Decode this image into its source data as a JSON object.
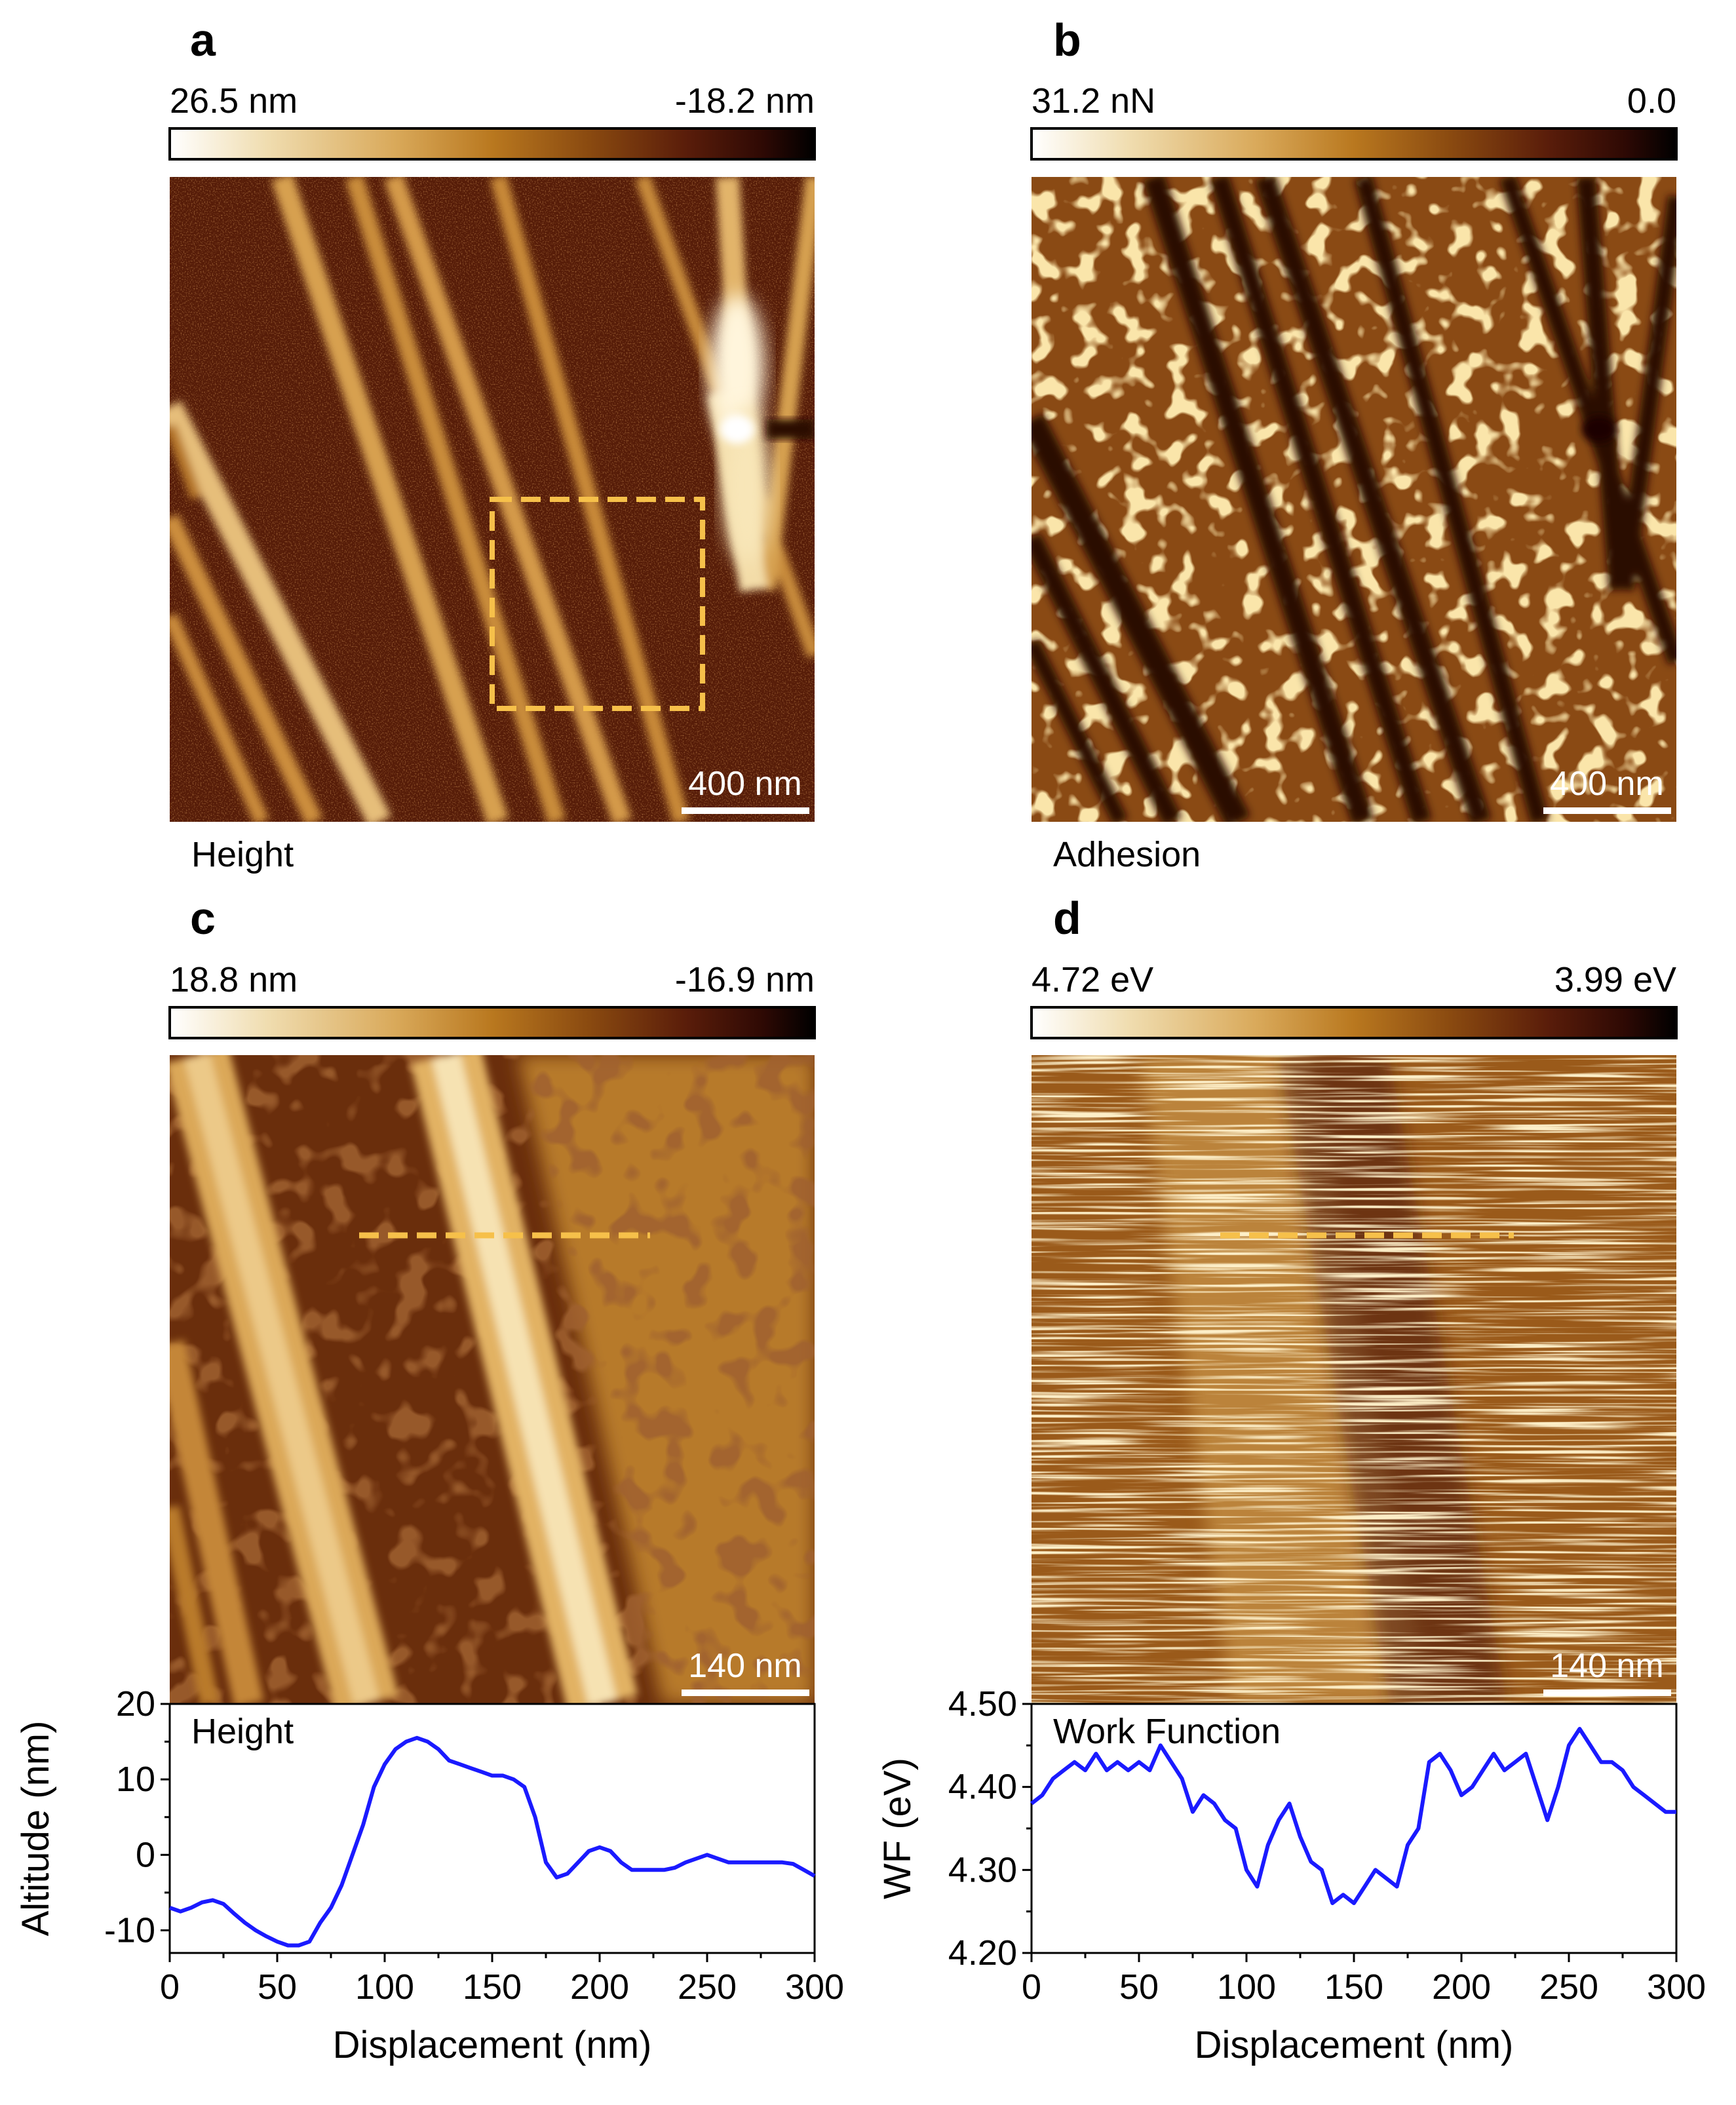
{
  "colors": {
    "colormap": [
      "#ffffff",
      "#f0ddb0",
      "#d9a95a",
      "#b9781f",
      "#8a4a10",
      "#5a1d0a",
      "#2e0904",
      "#000000"
    ],
    "dashed_box": "#f6c04a",
    "profile_line": "#1a1aff",
    "axis": "#000000"
  },
  "panels": {
    "a": {
      "letter": "a",
      "colorbar_left": "26.5 nm",
      "colorbar_right": "-18.2 nm",
      "scalebar_label": "400 nm",
      "channel_label": "Height"
    },
    "b": {
      "letter": "b",
      "colorbar_left": "31.2 nN",
      "colorbar_right": "0.0",
      "scalebar_label": "400 nm",
      "channel_label": "Adhesion"
    },
    "c": {
      "letter": "c",
      "colorbar_left": "18.8 nm",
      "colorbar_right": "-16.9 nm",
      "scalebar_label": "140 nm"
    },
    "d": {
      "letter": "d",
      "colorbar_left": "4.72 eV",
      "colorbar_right": "3.99 eV",
      "scalebar_label": "140 nm"
    }
  },
  "chart_data": [
    {
      "type": "line",
      "panel": "c",
      "title": "Height",
      "xlabel": "Displacement (nm)",
      "ylabel": "Altitude (nm)",
      "xlim": [
        0,
        300
      ],
      "ylim": [
        -13,
        20
      ],
      "xticks": [
        "0",
        "50",
        "100",
        "150",
        "200",
        "250",
        "300"
      ],
      "yticks": [
        "-10",
        "0",
        "10",
        "20"
      ],
      "xtick_values": [
        0,
        50,
        100,
        150,
        200,
        250,
        300
      ],
      "ytick_values": [
        -10,
        0,
        10,
        20
      ],
      "x": [
        0,
        5,
        10,
        15,
        20,
        25,
        30,
        35,
        40,
        45,
        50,
        55,
        60,
        65,
        70,
        75,
        80,
        85,
        90,
        95,
        100,
        105,
        110,
        115,
        120,
        125,
        130,
        135,
        140,
        145,
        150,
        155,
        160,
        165,
        170,
        175,
        180,
        185,
        190,
        195,
        200,
        205,
        210,
        215,
        220,
        225,
        230,
        235,
        240,
        245,
        250,
        255,
        260,
        265,
        270,
        275,
        280,
        285,
        290,
        295,
        300
      ],
      "y": [
        -7,
        -7.5,
        -7,
        -6.3,
        -6,
        -6.5,
        -7.8,
        -9,
        -10,
        -10.8,
        -11.5,
        -12,
        -12,
        -11.5,
        -9,
        -7,
        -4,
        0,
        4,
        9,
        12,
        14,
        15,
        15.5,
        15,
        14,
        12.5,
        12,
        11.5,
        11,
        10.5,
        10.5,
        10,
        9,
        5,
        -1,
        -3,
        -2.5,
        -1,
        0.5,
        1,
        0.5,
        -1,
        -2,
        -2,
        -2,
        -2,
        -1.7,
        -1,
        -0.5,
        0,
        -0.5,
        -1,
        -1,
        -1,
        -1,
        -1,
        -1,
        -1.2,
        -2,
        -2.8
      ]
    },
    {
      "type": "line",
      "panel": "d",
      "title": "Work Function",
      "xlabel": "Displacement (nm)",
      "ylabel": "WF (eV)",
      "xlim": [
        0,
        300
      ],
      "ylim": [
        4.2,
        4.5
      ],
      "xticks": [
        "0",
        "50",
        "100",
        "150",
        "200",
        "250",
        "300"
      ],
      "yticks": [
        "4.20",
        "4.30",
        "4.40",
        "4.50"
      ],
      "xtick_values": [
        0,
        50,
        100,
        150,
        200,
        250,
        300
      ],
      "ytick_values": [
        4.2,
        4.3,
        4.4,
        4.5
      ],
      "x": [
        0,
        5,
        10,
        15,
        20,
        25,
        30,
        35,
        40,
        45,
        50,
        55,
        60,
        65,
        70,
        75,
        80,
        85,
        90,
        95,
        100,
        105,
        110,
        115,
        120,
        125,
        130,
        135,
        140,
        145,
        150,
        155,
        160,
        165,
        170,
        175,
        180,
        185,
        190,
        195,
        200,
        205,
        210,
        215,
        220,
        225,
        230,
        235,
        240,
        245,
        250,
        255,
        260,
        265,
        270,
        275,
        280,
        285,
        290,
        295,
        300
      ],
      "y": [
        4.38,
        4.39,
        4.41,
        4.42,
        4.43,
        4.42,
        4.44,
        4.42,
        4.43,
        4.42,
        4.43,
        4.42,
        4.45,
        4.43,
        4.41,
        4.37,
        4.39,
        4.38,
        4.36,
        4.35,
        4.3,
        4.28,
        4.33,
        4.36,
        4.38,
        4.34,
        4.31,
        4.3,
        4.26,
        4.27,
        4.26,
        4.28,
        4.3,
        4.29,
        4.28,
        4.33,
        4.35,
        4.43,
        4.44,
        4.42,
        4.39,
        4.4,
        4.42,
        4.44,
        4.42,
        4.43,
        4.44,
        4.4,
        4.36,
        4.4,
        4.45,
        4.47,
        4.45,
        4.43,
        4.43,
        4.42,
        4.4,
        4.39,
        4.38,
        4.37,
        4.37
      ]
    }
  ]
}
